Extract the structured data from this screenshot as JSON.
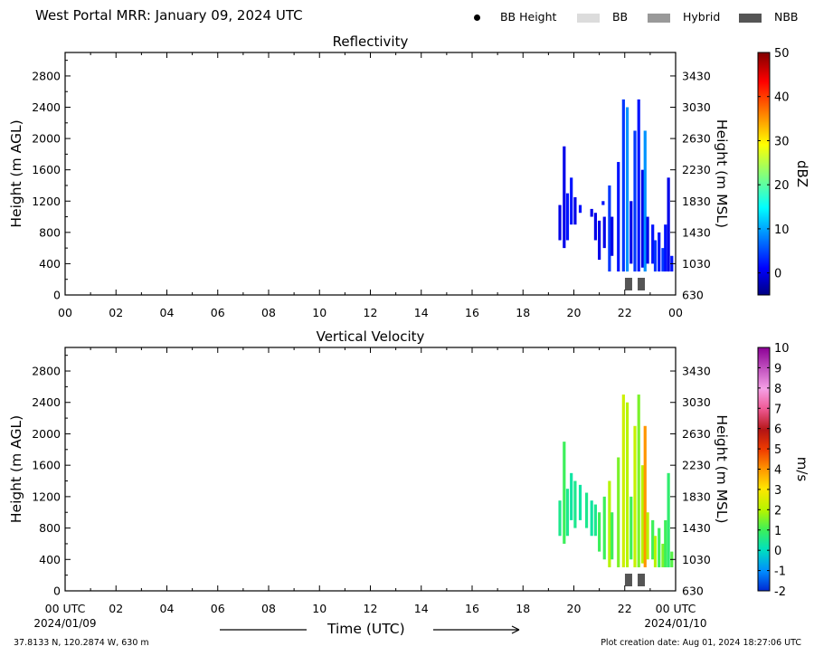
{
  "header": {
    "title": "West Portal MRR:  January 09, 2024 UTC",
    "legend": [
      {
        "label": "BB Height",
        "kind": "dot",
        "color": "#000000"
      },
      {
        "label": "BB",
        "kind": "swatch",
        "color": "#dcdcdc"
      },
      {
        "label": "Hybrid",
        "kind": "swatch",
        "color": "#999999"
      },
      {
        "label": "NBB",
        "kind": "swatch",
        "color": "#555555"
      }
    ]
  },
  "footer": {
    "location": "37.8133 N, 120.2874 W, 630 m",
    "created": "Plot creation date: Aug 01, 2024 18:27:06 UTC",
    "time_label": "Time (UTC)"
  },
  "chart_data": [
    {
      "type": "heatmap",
      "title": "Reflectivity",
      "ylabel": "Height (m AGL)",
      "y2label": "Height (m MSL)",
      "colorbar_label": "dBZ",
      "xlim": [
        0,
        24
      ],
      "ylim": [
        0,
        3100
      ],
      "x_ticks": [
        "00",
        "02",
        "04",
        "06",
        "08",
        "10",
        "12",
        "14",
        "16",
        "18",
        "20",
        "22",
        "00"
      ],
      "y_ticks": [
        0,
        400,
        800,
        1200,
        1600,
        2000,
        2400,
        2800
      ],
      "y2_ticks": [
        630,
        1030,
        1430,
        1830,
        2230,
        2630,
        3030,
        3430
      ],
      "colorbar": {
        "min": -5,
        "max": 50,
        "ticks": [
          "0",
          "10",
          "20",
          "30",
          "40",
          "50"
        ],
        "tick_values": [
          0,
          10,
          20,
          30,
          40,
          50
        ]
      },
      "profiles": [
        {
          "t": 19.45,
          "bottom": 700,
          "top": 1150,
          "value": 0
        },
        {
          "t": 19.62,
          "bottom": 600,
          "top": 1900,
          "value": 0
        },
        {
          "t": 19.75,
          "bottom": 700,
          "top": 1300,
          "value": 2
        },
        {
          "t": 19.9,
          "bottom": 900,
          "top": 1500,
          "value": 2
        },
        {
          "t": 20.05,
          "bottom": 900,
          "top": 1250,
          "value": 0
        },
        {
          "t": 20.25,
          "bottom": 1050,
          "top": 1150,
          "value": 2
        },
        {
          "t": 20.7,
          "bottom": 1000,
          "top": 1100,
          "value": 0
        },
        {
          "t": 20.85,
          "bottom": 700,
          "top": 1050,
          "value": 0
        },
        {
          "t": 21.0,
          "bottom": 450,
          "top": 950,
          "value": 0
        },
        {
          "t": 21.15,
          "bottom": 1150,
          "top": 1200,
          "value": 2
        },
        {
          "t": 21.2,
          "bottom": 600,
          "top": 1000,
          "value": 0
        },
        {
          "t": 21.4,
          "bottom": 300,
          "top": 1400,
          "value": 4
        },
        {
          "t": 21.5,
          "bottom": 500,
          "top": 1000,
          "value": 0
        },
        {
          "t": 21.75,
          "bottom": 300,
          "top": 1700,
          "value": 2
        },
        {
          "t": 21.95,
          "bottom": 300,
          "top": 2500,
          "value": 4
        },
        {
          "t": 22.1,
          "bottom": 300,
          "top": 2400,
          "value": 9
        },
        {
          "t": 22.25,
          "bottom": 400,
          "top": 1200,
          "value": 0
        },
        {
          "t": 22.4,
          "bottom": 300,
          "top": 2100,
          "value": 4
        },
        {
          "t": 22.55,
          "bottom": 300,
          "top": 2500,
          "value": 2
        },
        {
          "t": 22.7,
          "bottom": 350,
          "top": 1600,
          "value": 0
        },
        {
          "t": 22.8,
          "bottom": 300,
          "top": 2100,
          "value": 9
        },
        {
          "t": 22.9,
          "bottom": 400,
          "top": 1000,
          "value": 0
        },
        {
          "t": 23.1,
          "bottom": 400,
          "top": 900,
          "value": 2
        },
        {
          "t": 23.2,
          "bottom": 300,
          "top": 700,
          "value": 4
        },
        {
          "t": 23.35,
          "bottom": 300,
          "top": 800,
          "value": 2
        },
        {
          "t": 23.5,
          "bottom": 300,
          "top": 600,
          "value": 4
        },
        {
          "t": 23.6,
          "bottom": 300,
          "top": 900,
          "value": 2
        },
        {
          "t": 23.72,
          "bottom": 300,
          "top": 1500,
          "value": 0
        },
        {
          "t": 23.85,
          "bottom": 300,
          "top": 500,
          "value": 2
        }
      ],
      "nbb_markers": [
        22.15,
        22.65
      ]
    },
    {
      "type": "heatmap",
      "title": "Vertical Velocity",
      "ylabel": "Height (m AGL)",
      "y2label": "Height (m MSL)",
      "colorbar_label": "m/s",
      "xlim": [
        0,
        24
      ],
      "ylim": [
        0,
        3100
      ],
      "x_ticks": [
        "00 UTC",
        "02",
        "04",
        "06",
        "08",
        "10",
        "12",
        "14",
        "16",
        "18",
        "20",
        "22",
        "00 UTC"
      ],
      "x_date_left": "2024/01/09",
      "x_date_right": "2024/01/10",
      "y_ticks": [
        0,
        400,
        800,
        1200,
        1600,
        2000,
        2400,
        2800
      ],
      "y2_ticks": [
        630,
        1030,
        1430,
        1830,
        2230,
        2630,
        3030,
        3430
      ],
      "colorbar": {
        "min": -2,
        "max": 10,
        "ticks": [
          "-2",
          "-1",
          "0",
          "1",
          "2",
          "3",
          "4",
          "5",
          "6",
          "7",
          "8",
          "9",
          "10"
        ],
        "tick_values": [
          -2,
          -1,
          0,
          1,
          2,
          3,
          4,
          5,
          6,
          7,
          8,
          9,
          10
        ]
      },
      "profiles": [
        {
          "t": 19.45,
          "bottom": 700,
          "top": 1150,
          "value": 0.5
        },
        {
          "t": 19.62,
          "bottom": 600,
          "top": 1900,
          "value": 1
        },
        {
          "t": 19.75,
          "bottom": 700,
          "top": 1300,
          "value": 0.5
        },
        {
          "t": 19.9,
          "bottom": 900,
          "top": 1500,
          "value": 0.3
        },
        {
          "t": 20.05,
          "bottom": 800,
          "top": 1400,
          "value": 0.5
        },
        {
          "t": 20.25,
          "bottom": 900,
          "top": 1350,
          "value": 0.3
        },
        {
          "t": 20.5,
          "bottom": 800,
          "top": 1250,
          "value": 0.5
        },
        {
          "t": 20.7,
          "bottom": 700,
          "top": 1150,
          "value": 0.3
        },
        {
          "t": 20.85,
          "bottom": 700,
          "top": 1100,
          "value": 0.5
        },
        {
          "t": 21.0,
          "bottom": 500,
          "top": 1000,
          "value": 1
        },
        {
          "t": 21.2,
          "bottom": 400,
          "top": 1200,
          "value": 1
        },
        {
          "t": 21.4,
          "bottom": 300,
          "top": 1400,
          "value": 2
        },
        {
          "t": 21.5,
          "bottom": 400,
          "top": 1000,
          "value": 1
        },
        {
          "t": 21.75,
          "bottom": 300,
          "top": 1700,
          "value": 1.5
        },
        {
          "t": 21.95,
          "bottom": 300,
          "top": 2500,
          "value": 2.3
        },
        {
          "t": 22.1,
          "bottom": 300,
          "top": 2400,
          "value": 2
        },
        {
          "t": 22.25,
          "bottom": 400,
          "top": 1200,
          "value": 1
        },
        {
          "t": 22.4,
          "bottom": 300,
          "top": 2100,
          "value": 2.2
        },
        {
          "t": 22.55,
          "bottom": 300,
          "top": 2500,
          "value": 1.5
        },
        {
          "t": 22.7,
          "bottom": 350,
          "top": 1600,
          "value": 2
        },
        {
          "t": 22.8,
          "bottom": 300,
          "top": 2100,
          "value": 4
        },
        {
          "t": 22.9,
          "bottom": 400,
          "top": 1000,
          "value": 2
        },
        {
          "t": 23.1,
          "bottom": 400,
          "top": 900,
          "value": 1
        },
        {
          "t": 23.2,
          "bottom": 300,
          "top": 700,
          "value": 2
        },
        {
          "t": 23.35,
          "bottom": 300,
          "top": 800,
          "value": 1
        },
        {
          "t": 23.5,
          "bottom": 300,
          "top": 600,
          "value": 1.5
        },
        {
          "t": 23.6,
          "bottom": 300,
          "top": 900,
          "value": 1
        },
        {
          "t": 23.72,
          "bottom": 300,
          "top": 1500,
          "value": 0.8
        },
        {
          "t": 23.85,
          "bottom": 300,
          "top": 500,
          "value": 1.2
        }
      ],
      "nbb_markers": [
        22.15,
        22.65
      ]
    }
  ]
}
